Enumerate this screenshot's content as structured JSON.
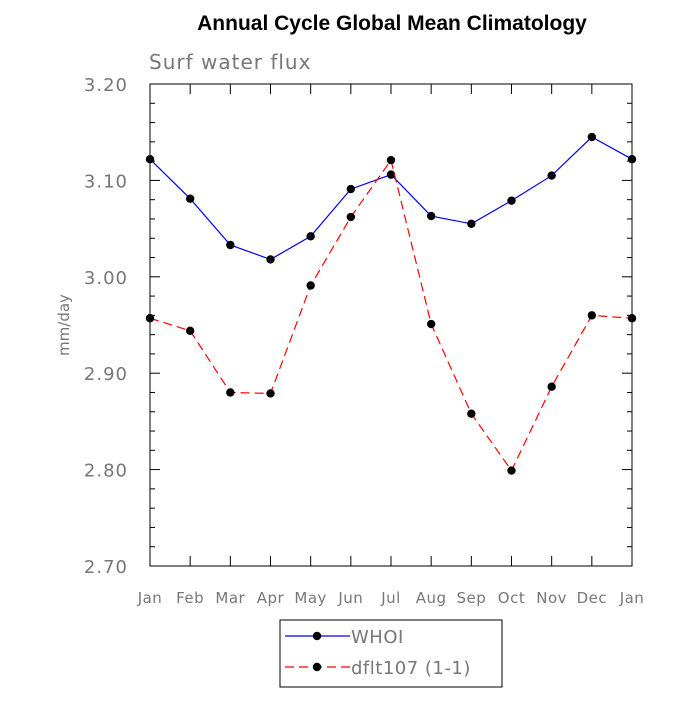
{
  "chart_data": {
    "type": "line",
    "title": "Annual Cycle Global Mean Climatology",
    "subtitle": "Surf water flux",
    "xlabel": "",
    "ylabel": "mm/day",
    "categories": [
      "Jan",
      "Feb",
      "Mar",
      "Apr",
      "May",
      "Jun",
      "Jul",
      "Aug",
      "Sep",
      "Oct",
      "Nov",
      "Dec",
      "Jan"
    ],
    "ylim": [
      2.7,
      3.2
    ],
    "yticks": [
      "2.70",
      "2.80",
      "2.90",
      "3.00",
      "3.10",
      "3.20"
    ],
    "legend_position": "bottom-center",
    "series": [
      {
        "name": "WHOI",
        "color": "#0000ff",
        "line_style": "solid",
        "marker": "filled-circle",
        "values": [
          3.122,
          3.081,
          3.033,
          3.018,
          3.042,
          3.091,
          3.106,
          3.063,
          3.055,
          3.079,
          3.105,
          3.145,
          3.122
        ]
      },
      {
        "name": "dflt107 (1-1)",
        "color": "#ff0000",
        "line_style": "dashed",
        "marker": "filled-circle",
        "values": [
          2.957,
          2.944,
          2.88,
          2.879,
          2.991,
          3.062,
          3.121,
          2.951,
          2.858,
          2.799,
          2.886,
          2.96,
          2.957
        ]
      }
    ]
  }
}
